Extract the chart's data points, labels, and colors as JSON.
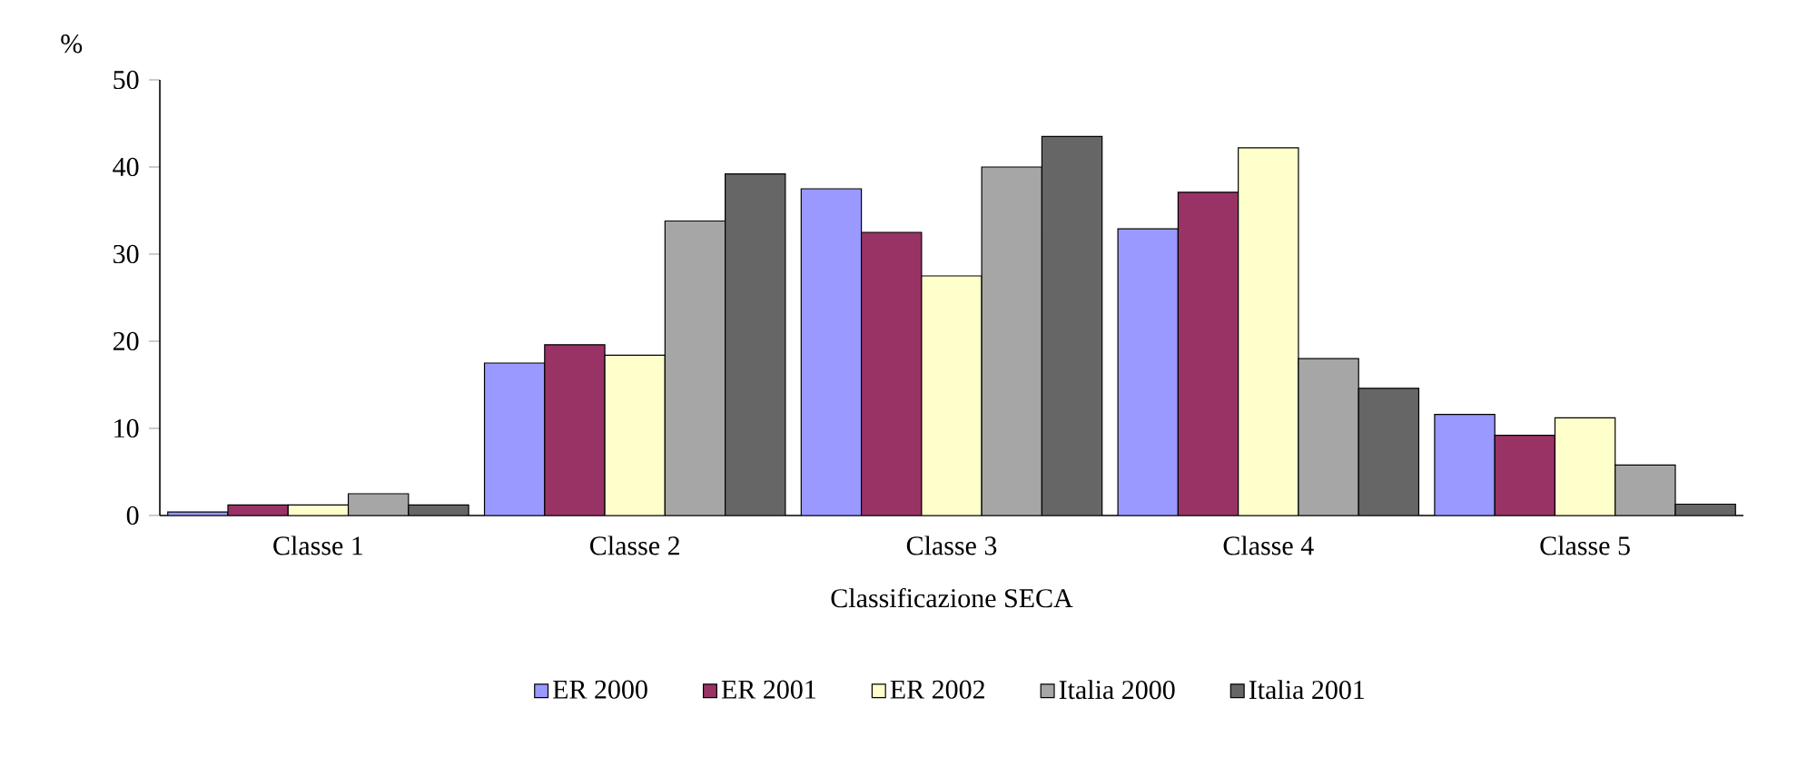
{
  "chart_data": {
    "type": "bar",
    "xlabel": "Classificazione SECA",
    "ylabel": "%",
    "categories": [
      "Classe 1",
      "Classe 2",
      "Classe 3",
      "Classe 4",
      "Classe 5"
    ],
    "series": [
      {
        "name": "ER 2000",
        "color": "#9999ff",
        "values": [
          0.4,
          17.5,
          37.5,
          32.9,
          11.6
        ]
      },
      {
        "name": "ER 2001",
        "color": "#993366",
        "values": [
          1.2,
          19.6,
          32.5,
          37.1,
          9.2
        ]
      },
      {
        "name": "ER 2002",
        "color": "#ffffcc",
        "values": [
          1.2,
          18.4,
          27.5,
          42.2,
          11.2
        ]
      },
      {
        "name": "Italia 2000",
        "color": "#a6a6a6",
        "values": [
          2.5,
          33.8,
          40.0,
          18.0,
          5.8
        ]
      },
      {
        "name": "Italia 2001",
        "color": "#666666",
        "values": [
          1.2,
          39.2,
          43.5,
          14.6,
          1.3
        ]
      }
    ],
    "ylim": [
      0,
      50
    ],
    "yticks": [
      0,
      10,
      20,
      30,
      40,
      50
    ],
    "legend": "bottom",
    "grid": false
  }
}
